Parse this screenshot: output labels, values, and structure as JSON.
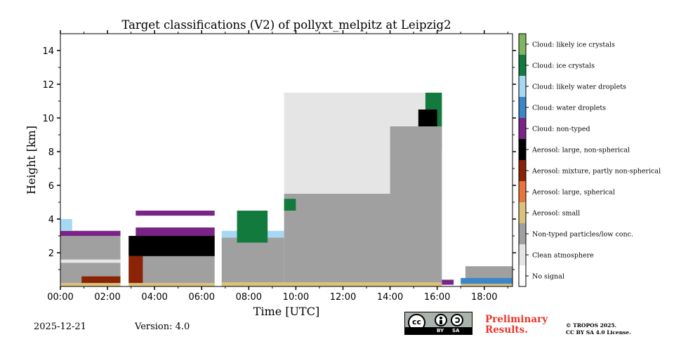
{
  "chart_data": {
    "type": "heatmap",
    "title": "Target classifications (V2) of pollyxt_melpitz at Leipzig2",
    "xlabel": "Time [UTC]",
    "ylabel": "Height [km]",
    "xlim_hours": [
      0,
      19.2
    ],
    "ylim_km": [
      0,
      15
    ],
    "x_ticks": [
      {
        "value": 0,
        "label": "00:00"
      },
      {
        "value": 2,
        "label": "02:00"
      },
      {
        "value": 4,
        "label": "04:00"
      },
      {
        "value": 6,
        "label": "06:00"
      },
      {
        "value": 8,
        "label": "08:00"
      },
      {
        "value": 10,
        "label": "10:00"
      },
      {
        "value": 12,
        "label": "12:00"
      },
      {
        "value": 14,
        "label": "14:00"
      },
      {
        "value": 16,
        "label": "16:00"
      },
      {
        "value": 18,
        "label": "18:00"
      }
    ],
    "y_ticks": [
      {
        "value": 2,
        "label": "2"
      },
      {
        "value": 4,
        "label": "4"
      },
      {
        "value": 6,
        "label": "6"
      },
      {
        "value": 8,
        "label": "8"
      },
      {
        "value": 10,
        "label": "10"
      },
      {
        "value": 12,
        "label": "12"
      },
      {
        "value": 14,
        "label": "14"
      }
    ],
    "classes": [
      {
        "label": "No signal",
        "color": "#ffffff"
      },
      {
        "label": "Clean atmosphere",
        "color": "#e5e5e5"
      },
      {
        "label": "Non-typed particles/low conc.",
        "color": "#a0a0a0"
      },
      {
        "label": "Aerosol: small",
        "color": "#d9c27a"
      },
      {
        "label": "Aerosol: large, spherical",
        "color": "#e8743b"
      },
      {
        "label": "Aerosol: mixture, partly non-spherical",
        "color": "#8b2406"
      },
      {
        "label": "Aerosol: large, non-spherical",
        "color": "#000000"
      },
      {
        "label": "Cloud: non-typed",
        "color": "#7b2488"
      },
      {
        "label": "Cloud: water droplets",
        "color": "#3b86c6"
      },
      {
        "label": "Cloud: likely water droplets",
        "color": "#a6d8f4"
      },
      {
        "label": "Cloud: ice crystals",
        "color": "#127a3c"
      },
      {
        "label": "Cloud: likely ice crystals",
        "color": "#7fb55e"
      }
    ],
    "regions": [
      {
        "class": "Non-typed particles/low conc.",
        "t0": 0,
        "t1": 2.55,
        "h0": 0.2,
        "h1": 3.0
      },
      {
        "class": "Clean atmosphere",
        "t0": 0,
        "t1": 2.55,
        "h0": 1.4,
        "h1": 1.6
      },
      {
        "class": "Cloud: non-typed",
        "t0": 0,
        "t1": 2.55,
        "h0": 3.0,
        "h1": 3.3
      },
      {
        "class": "Cloud: likely water droplets",
        "t0": 0,
        "t1": 0.5,
        "h0": 3.3,
        "h1": 4.0
      },
      {
        "class": "Aerosol: mixture, partly non-spherical",
        "t0": 0.9,
        "t1": 2.55,
        "h0": 0.2,
        "h1": 0.6
      },
      {
        "class": "Aerosol: small",
        "t0": 0,
        "t1": 2.55,
        "h0": 0,
        "h1": 0.2
      },
      {
        "class": "Non-typed particles/low conc.",
        "t0": 2.9,
        "t1": 6.55,
        "h0": 0.2,
        "h1": 2.9
      },
      {
        "class": "Aerosol: large, non-spherical",
        "t0": 2.9,
        "t1": 6.55,
        "h0": 1.8,
        "h1": 3.0
      },
      {
        "class": "Aerosol: mixture, partly non-spherical",
        "t0": 2.9,
        "t1": 3.5,
        "h0": 0.2,
        "h1": 1.8
      },
      {
        "class": "Cloud: non-typed",
        "t0": 3.2,
        "t1": 6.55,
        "h0": 3.0,
        "h1": 3.5
      },
      {
        "class": "Cloud: non-typed",
        "t0": 3.2,
        "t1": 6.55,
        "h0": 4.2,
        "h1": 4.5
      },
      {
        "class": "Aerosol: small",
        "t0": 2.9,
        "t1": 6.55,
        "h0": 0,
        "h1": 0.2
      },
      {
        "class": "Non-typed particles/low conc.",
        "t0": 6.85,
        "t1": 9.5,
        "h0": 0.2,
        "h1": 2.9
      },
      {
        "class": "Cloud: likely water droplets",
        "t0": 6.85,
        "t1": 9.5,
        "h0": 2.9,
        "h1": 3.3
      },
      {
        "class": "Cloud: ice crystals",
        "t0": 7.5,
        "t1": 8.8,
        "h0": 2.6,
        "h1": 4.5
      },
      {
        "class": "Aerosol: small",
        "t0": 6.85,
        "t1": 9.5,
        "h0": 0,
        "h1": 0.25
      },
      {
        "class": "Non-typed particles/low conc.",
        "t0": 9.5,
        "t1": 16.2,
        "h0": 0.2,
        "h1": 5.5
      },
      {
        "class": "Clean atmosphere",
        "t0": 9.5,
        "t1": 16.2,
        "h0": 5.5,
        "h1": 11.5
      },
      {
        "class": "Cloud: ice crystals",
        "t0": 9.5,
        "t1": 10.0,
        "h0": 4.5,
        "h1": 5.2
      },
      {
        "class": "Cloud: ice crystals",
        "t0": 15.5,
        "t1": 16.2,
        "h0": 8.1,
        "h1": 11.5
      },
      {
        "class": "Aerosol: large, non-spherical",
        "t0": 15.2,
        "t1": 16.0,
        "h0": 8.3,
        "h1": 10.5
      },
      {
        "class": "Non-typed particles/low conc.",
        "t0": 14.0,
        "t1": 16.2,
        "h0": 5.5,
        "h1": 9.5
      },
      {
        "class": "Aerosol: small",
        "t0": 9.5,
        "t1": 16.2,
        "h0": 0,
        "h1": 0.25
      },
      {
        "class": "Cloud: non-typed",
        "t0": 16.2,
        "t1": 16.7,
        "h0": 0.1,
        "h1": 0.4
      },
      {
        "class": "Cloud: water droplets",
        "t0": 17.0,
        "t1": 19.2,
        "h0": 0.15,
        "h1": 0.5
      },
      {
        "class": "Non-typed particles/low conc.",
        "t0": 17.2,
        "t1": 19.2,
        "h0": 0.5,
        "h1": 1.2
      },
      {
        "class": "Aerosol: small",
        "t0": 17.0,
        "t1": 19.2,
        "h0": 0,
        "h1": 0.15
      }
    ]
  },
  "footer": {
    "date": "2025-12-21",
    "version": "Version: 4.0",
    "cc_main": "cc",
    "cc_by": "BY",
    "cc_sa": "SA",
    "preliminary_line1": "Preliminary",
    "preliminary_line2": "Results.",
    "copyright_line1": "© TROPOS 2025.",
    "copyright_line2": "CC BY SA 4.0 License."
  }
}
